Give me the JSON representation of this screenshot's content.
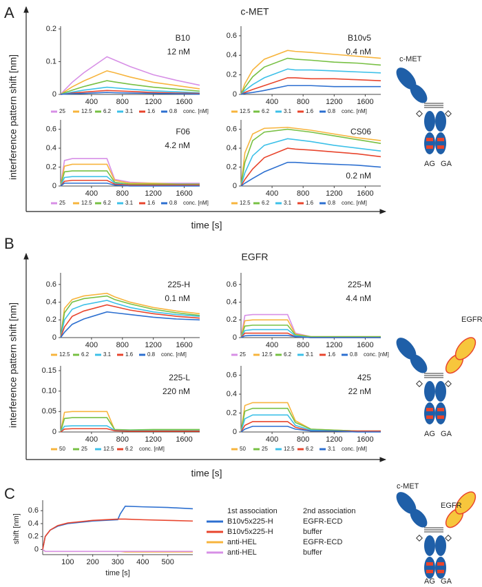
{
  "figure": {
    "panels": [
      {
        "label": "A",
        "title": "c-MET",
        "ylabel": "interference pattern shift [nm]",
        "xlabel": "time [s]",
        "diagram": [
          "c-MET",
          "AG",
          "GA"
        ]
      },
      {
        "label": "B",
        "title": "EGFR",
        "ylabel": "interference pattern shift [nm]",
        "xlabel": "time [s]",
        "diagram": [
          "EGFR",
          "AG",
          "GA"
        ]
      },
      {
        "label": "C",
        "diagram": [
          "c-MET",
          "EGFR",
          "AG",
          "GA"
        ]
      }
    ]
  },
  "chart_data": [
    {
      "type": "line",
      "title": "B10",
      "annotation": "12 nM",
      "legend_label": "conc. [nM]",
      "x": [
        0,
        50,
        150,
        300,
        600,
        700,
        900,
        1200,
        1500,
        1800
      ],
      "xlim": [
        0,
        1800
      ],
      "xticks": [
        400,
        800,
        1200,
        1600
      ],
      "ylim": [
        0,
        0.2
      ],
      "yticks": [
        0,
        0.1,
        0.2
      ],
      "series": [
        {
          "name": "25",
          "color": "#d78fe6",
          "values": [
            0,
            0.013,
            0.037,
            0.066,
            0.115,
            0.105,
            0.085,
            0.06,
            0.043,
            0.028
          ]
        },
        {
          "name": "12.5",
          "color": "#f7b43c",
          "values": [
            0,
            0.008,
            0.023,
            0.041,
            0.072,
            0.066,
            0.053,
            0.037,
            0.027,
            0.017
          ]
        },
        {
          "name": "6.2",
          "color": "#77c043",
          "values": [
            0,
            0.005,
            0.013,
            0.024,
            0.042,
            0.038,
            0.031,
            0.022,
            0.016,
            0.01
          ]
        },
        {
          "name": "3.1",
          "color": "#3cc0e8",
          "values": [
            0,
            0.002,
            0.007,
            0.013,
            0.022,
            0.02,
            0.016,
            0.011,
            0.008,
            0.005
          ]
        },
        {
          "name": "1.6",
          "color": "#e8442c",
          "values": [
            0,
            0.001,
            0.004,
            0.007,
            0.012,
            0.011,
            0.009,
            0.006,
            0.004,
            0.003
          ]
        },
        {
          "name": "0.8",
          "color": "#2c6fd0",
          "values": [
            0,
            0.001,
            0.002,
            0.003,
            0.006,
            0.005,
            0.004,
            0.003,
            0.002,
            0.001
          ]
        }
      ]
    },
    {
      "type": "line",
      "title": "B10v5",
      "annotation": "0.4 nM",
      "legend_label": "conc. [nM]",
      "x": [
        0,
        50,
        150,
        300,
        600,
        700,
        900,
        1200,
        1500,
        1800
      ],
      "xlim": [
        0,
        1800
      ],
      "xticks": [
        400,
        800,
        1200,
        1600
      ],
      "ylim": [
        0,
        0.67
      ],
      "yticks": [
        0,
        0.2,
        0.4,
        0.6
      ],
      "series": [
        {
          "name": "12.5",
          "color": "#f7b43c",
          "values": [
            0,
            0.11,
            0.25,
            0.36,
            0.45,
            0.44,
            0.43,
            0.41,
            0.39,
            0.37
          ]
        },
        {
          "name": "6.2",
          "color": "#77c043",
          "values": [
            0,
            0.07,
            0.18,
            0.28,
            0.37,
            0.36,
            0.35,
            0.33,
            0.32,
            0.3
          ]
        },
        {
          "name": "3.1",
          "color": "#3cc0e8",
          "values": [
            0,
            0.04,
            0.1,
            0.17,
            0.26,
            0.25,
            0.25,
            0.24,
            0.23,
            0.22
          ]
        },
        {
          "name": "1.6",
          "color": "#e8442c",
          "values": [
            0,
            0.02,
            0.05,
            0.09,
            0.17,
            0.17,
            0.16,
            0.16,
            0.15,
            0.14
          ]
        },
        {
          "name": "0.8",
          "color": "#2c6fd0",
          "values": [
            0,
            0.01,
            0.02,
            0.04,
            0.09,
            0.09,
            0.09,
            0.08,
            0.08,
            0.08
          ]
        }
      ]
    },
    {
      "type": "line",
      "title": "F06",
      "annotation": "4.2 nM",
      "legend_label": "conc. [nM]",
      "x": [
        0,
        50,
        150,
        300,
        600,
        700,
        900,
        1200,
        1500,
        1800
      ],
      "xlim": [
        0,
        1800
      ],
      "xticks": [
        400,
        800,
        1200,
        1600
      ],
      "ylim": [
        0,
        0.67
      ],
      "yticks": [
        0,
        0.2,
        0.4,
        0.6
      ],
      "series": [
        {
          "name": "25",
          "color": "#d78fe6",
          "values": [
            0,
            0.27,
            0.29,
            0.29,
            0.29,
            0.07,
            0.04,
            0.03,
            0.03,
            0.03
          ]
        },
        {
          "name": "12.5",
          "color": "#f7b43c",
          "values": [
            0,
            0.21,
            0.23,
            0.23,
            0.23,
            0.06,
            0.03,
            0.03,
            0.02,
            0.02
          ]
        },
        {
          "name": "6.2",
          "color": "#77c043",
          "values": [
            0,
            0.15,
            0.16,
            0.16,
            0.16,
            0.04,
            0.02,
            0.02,
            0.02,
            0.02
          ]
        },
        {
          "name": "3.1",
          "color": "#3cc0e8",
          "values": [
            0,
            0.09,
            0.1,
            0.1,
            0.1,
            0.03,
            0.01,
            0.01,
            0.01,
            0.01
          ]
        },
        {
          "name": "1.6",
          "color": "#e8442c",
          "values": [
            0,
            0.05,
            0.06,
            0.06,
            0.06,
            0.02,
            0.01,
            0.01,
            0.01,
            0.01
          ]
        },
        {
          "name": "0.8",
          "color": "#2c6fd0",
          "values": [
            0,
            0.03,
            0.03,
            0.03,
            0.03,
            0.01,
            0,
            0,
            0,
            0
          ]
        }
      ]
    },
    {
      "type": "line",
      "title": "CS06",
      "annotation": "0.2 nM",
      "legend_label": "conc. [nM]",
      "x": [
        0,
        50,
        150,
        300,
        600,
        700,
        900,
        1200,
        1500,
        1800
      ],
      "xlim": [
        0,
        1800
      ],
      "xticks": [
        400,
        800,
        1200,
        1600
      ],
      "ylim": [
        0,
        0.67
      ],
      "yticks": [
        0,
        0.2,
        0.4,
        0.6
      ],
      "series": [
        {
          "name": "12.5",
          "color": "#f7b43c",
          "values": [
            0,
            0.35,
            0.55,
            0.61,
            0.62,
            0.61,
            0.59,
            0.55,
            0.51,
            0.48
          ]
        },
        {
          "name": "6.2",
          "color": "#77c043",
          "values": [
            0,
            0.25,
            0.48,
            0.57,
            0.6,
            0.59,
            0.57,
            0.53,
            0.49,
            0.45
          ]
        },
        {
          "name": "3.1",
          "color": "#3cc0e8",
          "values": [
            0,
            0.14,
            0.32,
            0.43,
            0.5,
            0.49,
            0.47,
            0.43,
            0.4,
            0.37
          ]
        },
        {
          "name": "1.6",
          "color": "#e8442c",
          "values": [
            0,
            0.07,
            0.18,
            0.3,
            0.4,
            0.39,
            0.38,
            0.36,
            0.34,
            0.31
          ]
        },
        {
          "name": "0.8",
          "color": "#2c6fd0",
          "values": [
            0,
            0.03,
            0.08,
            0.15,
            0.25,
            0.25,
            0.24,
            0.23,
            0.22,
            0.2
          ]
        }
      ]
    },
    {
      "type": "line",
      "title": "225-H",
      "annotation": "0.1 nM",
      "legend_label": "conc. [nM]",
      "x": [
        0,
        50,
        150,
        300,
        600,
        700,
        900,
        1200,
        1500,
        1800
      ],
      "xlim": [
        0,
        1800
      ],
      "xticks": [
        400,
        800,
        1200,
        1600
      ],
      "ylim": [
        0,
        0.7
      ],
      "yticks": [
        0,
        0.2,
        0.4,
        0.6
      ],
      "series": [
        {
          "name": "12.5",
          "color": "#f7b43c",
          "values": [
            0,
            0.33,
            0.43,
            0.47,
            0.5,
            0.46,
            0.4,
            0.34,
            0.3,
            0.27
          ]
        },
        {
          "name": "6.2",
          "color": "#77c043",
          "values": [
            0,
            0.28,
            0.4,
            0.44,
            0.47,
            0.43,
            0.38,
            0.32,
            0.28,
            0.25
          ]
        },
        {
          "name": "3.1",
          "color": "#3cc0e8",
          "values": [
            0,
            0.2,
            0.32,
            0.37,
            0.42,
            0.39,
            0.34,
            0.29,
            0.26,
            0.24
          ]
        },
        {
          "name": "1.6",
          "color": "#e8442c",
          "values": [
            0,
            0.12,
            0.24,
            0.3,
            0.37,
            0.35,
            0.31,
            0.27,
            0.24,
            0.22
          ]
        },
        {
          "name": "0.8",
          "color": "#2c6fd0",
          "values": [
            0,
            0.06,
            0.15,
            0.21,
            0.29,
            0.28,
            0.26,
            0.23,
            0.21,
            0.2
          ]
        }
      ]
    },
    {
      "type": "line",
      "title": "225-M",
      "annotation": "4.4 nM",
      "legend_label": "conc. [nM]",
      "x": [
        0,
        50,
        150,
        300,
        600,
        700,
        900,
        1200,
        1500,
        1800
      ],
      "xlim": [
        0,
        1800
      ],
      "xticks": [
        400,
        800,
        1200,
        1600
      ],
      "ylim": [
        0,
        0.7
      ],
      "yticks": [
        0,
        0.2,
        0.4,
        0.6
      ],
      "series": [
        {
          "name": "25",
          "color": "#d78fe6",
          "values": [
            0,
            0.25,
            0.26,
            0.26,
            0.26,
            0.05,
            0.01,
            0.01,
            0.01,
            0.01
          ]
        },
        {
          "name": "12.5",
          "color": "#f7b43c",
          "values": [
            0,
            0.19,
            0.2,
            0.2,
            0.2,
            0.04,
            0.01,
            0.01,
            0.01,
            0.01
          ]
        },
        {
          "name": "6.2",
          "color": "#77c043",
          "values": [
            0,
            0.13,
            0.14,
            0.14,
            0.14,
            0.03,
            0.01,
            0.01,
            0.01,
            0.01
          ]
        },
        {
          "name": "3.1",
          "color": "#3cc0e8",
          "values": [
            0,
            0.08,
            0.09,
            0.09,
            0.09,
            0.02,
            0,
            0,
            0,
            0
          ]
        },
        {
          "name": "1.6",
          "color": "#e8442c",
          "values": [
            0,
            0.05,
            0.05,
            0.05,
            0.05,
            0.01,
            0,
            0,
            0,
            0
          ]
        },
        {
          "name": "0.8",
          "color": "#2c6fd0",
          "values": [
            0,
            0.02,
            0.025,
            0.025,
            0.025,
            0.01,
            0,
            0,
            0,
            0
          ]
        }
      ]
    },
    {
      "type": "line",
      "title": "225-L",
      "annotation": "220 nM",
      "legend_label": "conc. [nM]",
      "x": [
        0,
        50,
        150,
        300,
        600,
        700,
        900,
        1200,
        1500,
        1800
      ],
      "xlim": [
        0,
        1800
      ],
      "xticks": [
        400,
        800,
        1200,
        1600
      ],
      "ylim": [
        0,
        0.155
      ],
      "yticks": [
        0,
        0.05,
        {
          "value": 0.1,
          "label": "0.10"
        },
        0.15
      ],
      "series": [
        {
          "name": "50",
          "color": "#f7b43c",
          "values": [
            0,
            0.048,
            0.05,
            0.05,
            0.05,
            0.005,
            0.004,
            0.004,
            0.004,
            0.004
          ]
        },
        {
          "name": "25",
          "color": "#77c043",
          "values": [
            0,
            0.033,
            0.035,
            0.035,
            0.035,
            0.006,
            0.005,
            0.006,
            0.006,
            0.006
          ]
        },
        {
          "name": "12.5",
          "color": "#3cc0e8",
          "values": [
            0,
            0.014,
            0.015,
            0.015,
            0.015,
            0.004,
            0.003,
            0.003,
            0.003,
            0.003
          ]
        },
        {
          "name": "6.2",
          "color": "#e8442c",
          "values": [
            0,
            0.007,
            0.008,
            0.008,
            0.008,
            0.003,
            0.002,
            0.002,
            0.002,
            0.002
          ]
        }
      ]
    },
    {
      "type": "line",
      "title": "425",
      "annotation": "22 nM",
      "legend_label": "conc. [nM]",
      "x": [
        0,
        50,
        150,
        300,
        600,
        700,
        900,
        1200,
        1500,
        1800
      ],
      "xlim": [
        0,
        1800
      ],
      "xticks": [
        400,
        800,
        1200,
        1600
      ],
      "ylim": [
        0,
        0.67
      ],
      "yticks": [
        0,
        0.2,
        0.4,
        0.6
      ],
      "series": [
        {
          "name": "50",
          "color": "#f7b43c",
          "values": [
            0,
            0.28,
            0.31,
            0.31,
            0.31,
            0.12,
            0.03,
            0.02,
            0.01,
            0.01
          ]
        },
        {
          "name": "25",
          "color": "#77c043",
          "values": [
            0,
            0.22,
            0.25,
            0.25,
            0.25,
            0.1,
            0.03,
            0.02,
            0.01,
            0.01
          ]
        },
        {
          "name": "12.5",
          "color": "#3cc0e8",
          "values": [
            0,
            0.14,
            0.18,
            0.18,
            0.18,
            0.07,
            0.02,
            0.01,
            0.01,
            0.01
          ]
        },
        {
          "name": "6.2",
          "color": "#e8442c",
          "values": [
            0,
            0.07,
            0.11,
            0.11,
            0.11,
            0.05,
            0.01,
            0.01,
            0.01,
            0.01
          ]
        },
        {
          "name": "3.1",
          "color": "#2c6fd0",
          "values": [
            0,
            0.03,
            0.06,
            0.06,
            0.06,
            0.03,
            0.01,
            0.01,
            0,
            0
          ]
        }
      ]
    },
    {
      "type": "line",
      "xlabel": "time [s]",
      "ylabel": "shift [nm]",
      "legend_headers": [
        "1st association",
        "2nd association"
      ],
      "x": [
        0,
        10,
        30,
        60,
        100,
        200,
        300,
        310,
        330,
        400,
        500,
        600
      ],
      "xlim": [
        0,
        600
      ],
      "xticks": [
        100,
        200,
        300,
        400,
        500
      ],
      "ylim": [
        -0.08,
        0.72
      ],
      "yticks": [
        0,
        0.2,
        0.4,
        0.6
      ],
      "series": [
        {
          "name": "B10v5x225-H",
          "second": "EGFR-ECD",
          "color": "#2c6fd0",
          "values": [
            0,
            0.2,
            0.3,
            0.36,
            0.4,
            0.44,
            0.46,
            0.55,
            0.67,
            0.66,
            0.65,
            0.63
          ]
        },
        {
          "name": "B10v5x225-H",
          "second": "buffer",
          "color": "#e8442c",
          "values": [
            0,
            0.2,
            0.3,
            0.37,
            0.41,
            0.45,
            0.47,
            0.47,
            0.47,
            0.46,
            0.45,
            0.44
          ]
        },
        {
          "name": "anti-HEL",
          "second": "EGFR-ECD",
          "color": "#f7b43c",
          "values": [
            0,
            -0.03,
            -0.03,
            -0.03,
            -0.03,
            -0.03,
            -0.03,
            -0.03,
            -0.04,
            -0.04,
            -0.04,
            -0.04
          ]
        },
        {
          "name": "anti-HEL",
          "second": "buffer",
          "color": "#d78fe6",
          "values": [
            0,
            -0.03,
            -0.03,
            -0.03,
            -0.03,
            -0.03,
            -0.03,
            -0.03,
            -0.03,
            -0.03,
            -0.03,
            -0.03
          ]
        }
      ]
    }
  ]
}
